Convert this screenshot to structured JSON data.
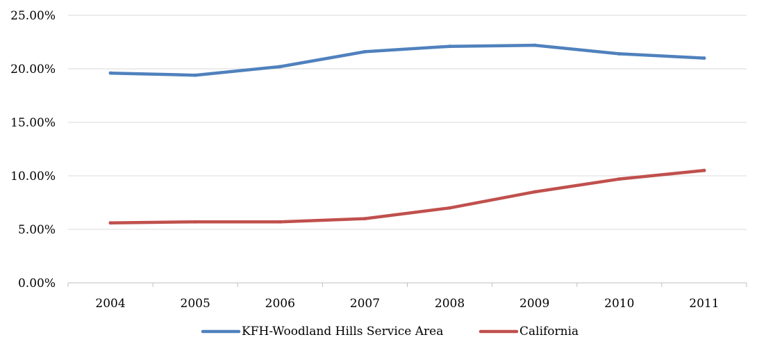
{
  "chart_data": {
    "type": "line",
    "title": "",
    "xlabel": "",
    "ylabel": "",
    "categories": [
      "2004",
      "2005",
      "2006",
      "2007",
      "2008",
      "2009",
      "2010",
      "2011"
    ],
    "y_tick_labels": [
      "0.00%",
      "5.00%",
      "10.00%",
      "15.00%",
      "20.00%",
      "25.00%"
    ],
    "ylim": [
      0,
      25
    ],
    "y_unit": "%",
    "grid": "horizontal",
    "legend_position": "bottom",
    "series": [
      {
        "name": "KFH-Woodland Hills Service Area",
        "color": "#4F81BD",
        "values": [
          19.6,
          19.4,
          20.2,
          21.6,
          22.1,
          22.2,
          21.4,
          21.0
        ]
      },
      {
        "name": "California",
        "color": "#C0504D",
        "values": [
          5.6,
          5.7,
          5.7,
          6.0,
          7.0,
          8.5,
          9.7,
          10.5
        ]
      }
    ]
  }
}
